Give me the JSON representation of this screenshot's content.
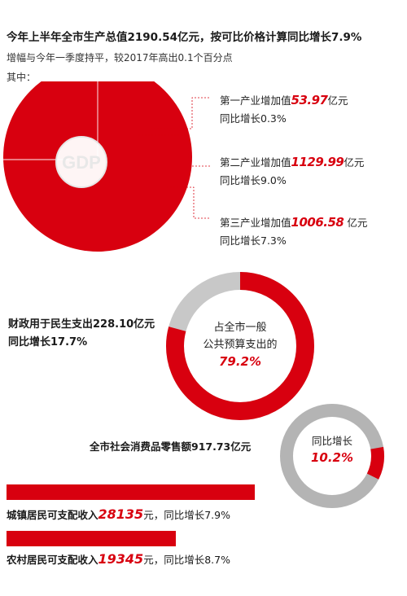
{
  "header": {
    "title": "今年上半年全市生产总值2190.54亿元，按可比价格计算同比增长7.9%",
    "subtitle": "增幅与今年一季度持平，较2017年高出0.1个百分点",
    "sub_label": "其中："
  },
  "gdp": {
    "center_label": "GDP",
    "colors": {
      "red": "#d8000f",
      "ring_bg": "#f2f2f2"
    },
    "industries": [
      {
        "name": "第一产业增加值",
        "value": "53.97",
        "unit": "亿元",
        "growth": "同比增长0.3%"
      },
      {
        "name": "第二产业增加值",
        "value": "1129.99",
        "unit": "亿元",
        "growth": "同比增长9.0%"
      },
      {
        "name": "第三产业增加值",
        "value": "1006.58",
        "unit": " 亿元",
        "growth": "同比增长7.3%"
      }
    ]
  },
  "fiscal": {
    "line1": "财政用于民生支出228.10亿元",
    "line2": "同比增长17.7%",
    "ring_line1": "占全市一般",
    "ring_line2": "公共预算支出的",
    "ring_percent": "79.2%",
    "share": 0.792
  },
  "retail": {
    "label": "全市社会消费品零售额917.73亿元",
    "ring_line1": "同比增长",
    "ring_percent": "10.2%",
    "share": 0.102
  },
  "income": [
    {
      "prefix": "城镇居民可支配收入",
      "value": "28135",
      "suffix": "元，同比增长7.9%",
      "bar_fraction": 0.63
    },
    {
      "prefix": "农村居民可支配收入",
      "value": "19345",
      "suffix": "元，同比增长8.7%",
      "bar_fraction": 0.43
    }
  ]
}
